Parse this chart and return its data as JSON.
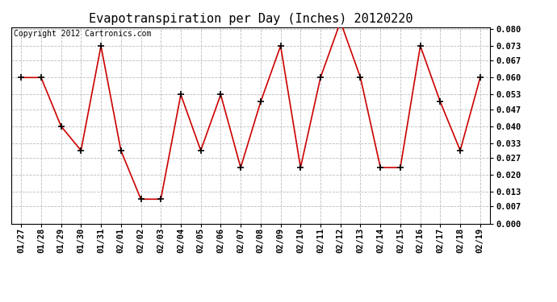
{
  "title": "Evapotranspiration per Day (Inches) 20120220",
  "copyright_text": "Copyright 2012 Cartronics.com",
  "x_labels": [
    "01/27",
    "01/28",
    "01/29",
    "01/30",
    "01/31",
    "02/01",
    "02/02",
    "02/03",
    "02/04",
    "02/05",
    "02/06",
    "02/07",
    "02/08",
    "02/09",
    "02/10",
    "02/11",
    "02/12",
    "02/13",
    "02/14",
    "02/15",
    "02/16",
    "02/17",
    "02/18",
    "02/19"
  ],
  "y_values": [
    0.06,
    0.06,
    0.04,
    0.03,
    0.073,
    0.03,
    0.01,
    0.01,
    0.053,
    0.03,
    0.053,
    0.023,
    0.05,
    0.073,
    0.023,
    0.06,
    0.083,
    0.06,
    0.023,
    0.023,
    0.073,
    0.05,
    0.03,
    0.06
  ],
  "y_ticks": [
    0.0,
    0.007,
    0.013,
    0.02,
    0.027,
    0.033,
    0.04,
    0.047,
    0.053,
    0.06,
    0.067,
    0.073,
    0.08
  ],
  "ylim": [
    0.0,
    0.0807
  ],
  "line_color": "#cc0000",
  "marker": "+",
  "marker_size": 6,
  "marker_color": "#000000",
  "grid_color": "#bbbbbb",
  "grid_style": "--",
  "background_color": "#ffffff",
  "title_fontsize": 11,
  "copyright_fontsize": 7,
  "tick_fontsize": 7.5,
  "fig_width": 6.9,
  "fig_height": 3.75,
  "dpi": 100
}
